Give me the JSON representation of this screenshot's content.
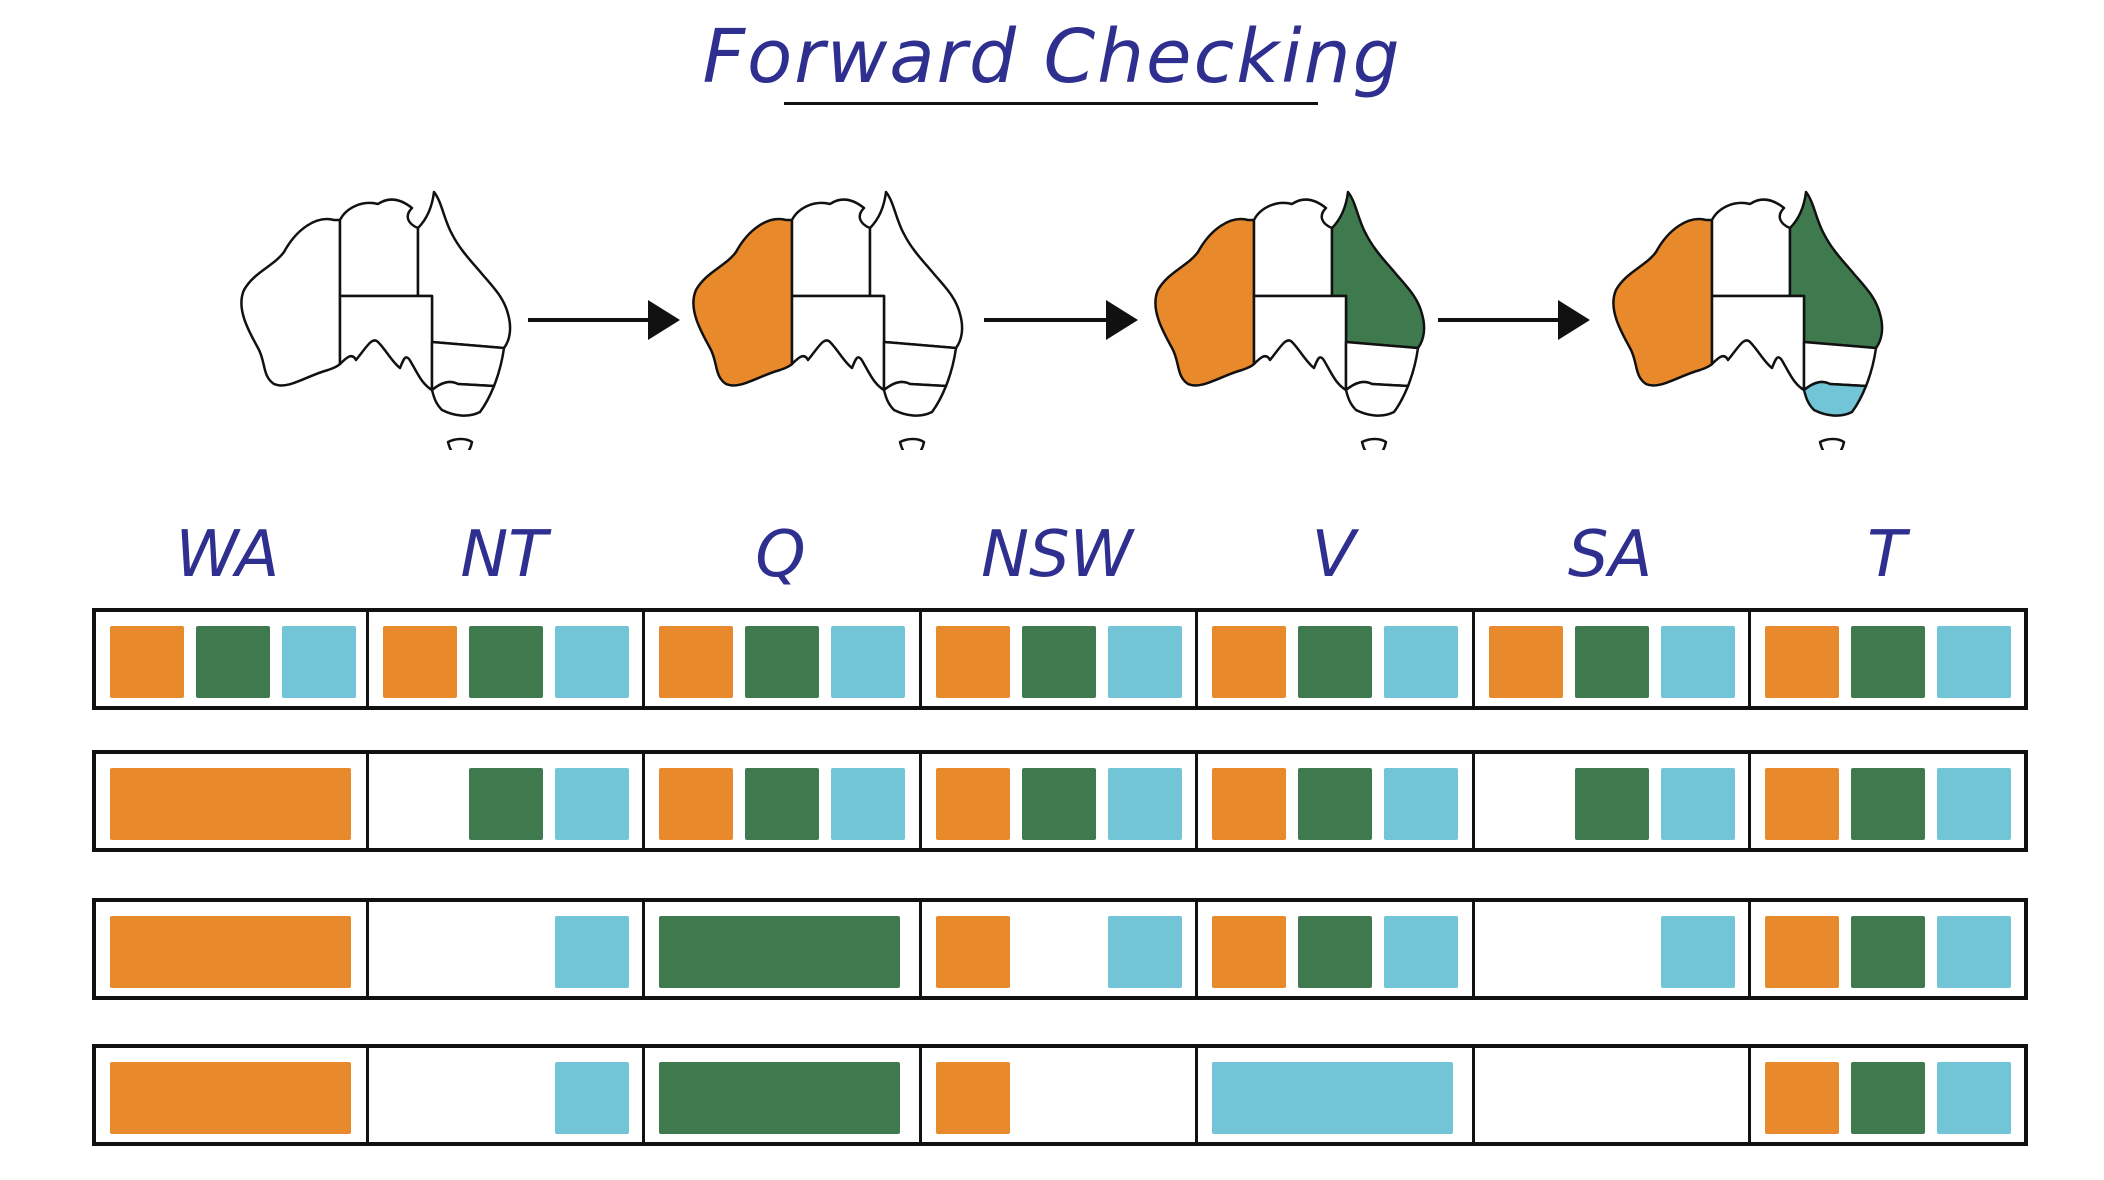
{
  "title": "Forward Checking",
  "colors": {
    "orange": "#e8892b",
    "green": "#3f7a4e",
    "blue": "#72c5d6"
  },
  "variables": [
    "WA",
    "NT",
    "Q",
    "NSW",
    "V",
    "SA",
    "T"
  ],
  "maps": [
    {
      "WA": null,
      "NT": null,
      "Q": null,
      "NSW": null,
      "V": null,
      "SA": null,
      "T": null
    },
    {
      "WA": "orange",
      "NT": null,
      "Q": null,
      "NSW": null,
      "V": null,
      "SA": null,
      "T": null
    },
    {
      "WA": "orange",
      "NT": null,
      "Q": "green",
      "NSW": null,
      "V": null,
      "SA": null,
      "T": null
    },
    {
      "WA": "orange",
      "NT": null,
      "Q": "green",
      "NSW": null,
      "V": "blue",
      "SA": null,
      "T": null
    }
  ],
  "domains": [
    [
      {
        "assigned": null,
        "values": [
          "orange",
          "green",
          "blue"
        ]
      },
      {
        "assigned": null,
        "values": [
          "orange",
          "green",
          "blue"
        ]
      },
      {
        "assigned": null,
        "values": [
          "orange",
          "green",
          "blue"
        ]
      },
      {
        "assigned": null,
        "values": [
          "orange",
          "green",
          "blue"
        ]
      },
      {
        "assigned": null,
        "values": [
          "orange",
          "green",
          "blue"
        ]
      },
      {
        "assigned": null,
        "values": [
          "orange",
          "green",
          "blue"
        ]
      },
      {
        "assigned": null,
        "values": [
          "orange",
          "green",
          "blue"
        ]
      }
    ],
    [
      {
        "assigned": "orange",
        "values": []
      },
      {
        "assigned": null,
        "values": [
          "green",
          "blue"
        ]
      },
      {
        "assigned": null,
        "values": [
          "orange",
          "green",
          "blue"
        ]
      },
      {
        "assigned": null,
        "values": [
          "orange",
          "green",
          "blue"
        ]
      },
      {
        "assigned": null,
        "values": [
          "orange",
          "green",
          "blue"
        ]
      },
      {
        "assigned": null,
        "values": [
          "green",
          "blue"
        ]
      },
      {
        "assigned": null,
        "values": [
          "orange",
          "green",
          "blue"
        ]
      }
    ],
    [
      {
        "assigned": "orange",
        "values": []
      },
      {
        "assigned": null,
        "values": [
          "blue"
        ]
      },
      {
        "assigned": "green",
        "values": []
      },
      {
        "assigned": null,
        "values": [
          "orange",
          "blue"
        ]
      },
      {
        "assigned": null,
        "values": [
          "orange",
          "green",
          "blue"
        ]
      },
      {
        "assigned": null,
        "values": [
          "blue"
        ]
      },
      {
        "assigned": null,
        "values": [
          "orange",
          "green",
          "blue"
        ]
      }
    ],
    [
      {
        "assigned": "orange",
        "values": []
      },
      {
        "assigned": null,
        "values": [
          "blue"
        ]
      },
      {
        "assigned": "green",
        "values": []
      },
      {
        "assigned": null,
        "values": [
          "orange"
        ]
      },
      {
        "assigned": "blue",
        "values": []
      },
      {
        "assigned": null,
        "values": []
      },
      {
        "assigned": null,
        "values": [
          "orange",
          "green",
          "blue"
        ]
      }
    ]
  ]
}
